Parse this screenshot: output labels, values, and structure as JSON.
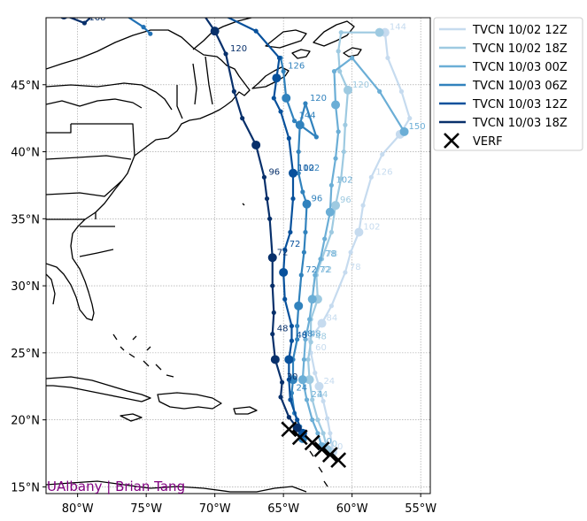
{
  "credit": "UAlbany | Brian Tang",
  "credit_color": "#800080",
  "chart_data": {
    "type": "line",
    "title": "",
    "xlabel": "",
    "ylabel": "",
    "map": "track map of the western North Atlantic with coastlines and state borders",
    "projection": "cylindrical (lon/lat)",
    "xlim": [
      -82.3,
      -54.3
    ],
    "ylim": [
      14.5,
      50
    ],
    "xticks": [
      -80,
      -75,
      -70,
      -65,
      -60,
      -55
    ],
    "xtick_labels": [
      "80°W",
      "75°W",
      "70°W",
      "65°W",
      "60°W",
      "55°W"
    ],
    "yticks": [
      15,
      20,
      25,
      30,
      35,
      40,
      45
    ],
    "ytick_labels": [
      "15°N",
      "20°N",
      "25°N",
      "30°N",
      "35°N",
      "40°N",
      "45°N"
    ],
    "grid": true,
    "legend_position": "outside-upper-right",
    "series": [
      {
        "name": "TVCN 10/02 12Z",
        "color": "#c6dbef",
        "points": [
          [
            -61.4,
            17.6
          ],
          [
            -61.6,
            19.0
          ],
          [
            -61.8,
            20.1
          ],
          [
            -62.1,
            21.4
          ],
          [
            -62.4,
            22.5
          ],
          [
            -62.7,
            23.5
          ],
          [
            -63.0,
            25.0
          ],
          [
            -63.1,
            26.0
          ],
          [
            -62.2,
            27.2
          ],
          [
            -61.5,
            28.5
          ],
          [
            -60.5,
            31.0
          ],
          [
            -60.1,
            32.5
          ],
          [
            -59.5,
            34.0
          ],
          [
            -59.2,
            36.0
          ],
          [
            -58.6,
            38.1
          ],
          [
            -57.8,
            39.8
          ],
          [
            -56.5,
            41.3
          ],
          [
            -55.8,
            42.5
          ],
          [
            -56.4,
            44.5
          ],
          [
            -57.4,
            47.0
          ],
          [
            -57.6,
            48.9
          ]
        ],
        "labels": [
          {
            "t": "0",
            "pt": 0
          },
          {
            "t": "24",
            "pt": 4
          },
          {
            "t": "60",
            "pt": 6
          },
          {
            "t": "84",
            "pt": 8
          },
          {
            "t": "78",
            "pt": 10
          },
          {
            "t": "102",
            "pt": 12
          },
          {
            "t": "126",
            "pt": 14
          },
          {
            "t": "144",
            "pt": 20
          }
        ]
      },
      {
        "name": "TVCN 10/02 18Z",
        "color": "#9ecae1",
        "points": [
          [
            -61.8,
            17.8
          ],
          [
            -62.1,
            19.0
          ],
          [
            -62.5,
            20.0
          ],
          [
            -62.9,
            21.5
          ],
          [
            -63.1,
            23.0
          ],
          [
            -63.2,
            24.5
          ],
          [
            -63.0,
            25.8
          ],
          [
            -63.0,
            27.5
          ],
          [
            -62.5,
            29.0
          ],
          [
            -62.6,
            30.8
          ],
          [
            -62.2,
            32.0
          ],
          [
            -61.5,
            34.0
          ],
          [
            -61.2,
            36.0
          ],
          [
            -60.8,
            38.0
          ],
          [
            -60.6,
            40.0
          ],
          [
            -60.5,
            42.0
          ],
          [
            -60.3,
            44.6
          ],
          [
            -60.9,
            46.0
          ],
          [
            -61.0,
            47.5
          ],
          [
            -60.8,
            48.9
          ],
          [
            -58.0,
            48.9
          ]
        ],
        "labels": [
          {
            "t": "0",
            "pt": 0
          },
          {
            "t": "24",
            "pt": 3
          },
          {
            "t": "48",
            "pt": 6
          },
          {
            "t": "72",
            "pt": 9
          },
          {
            "t": "78",
            "pt": 10
          },
          {
            "t": "96",
            "pt": 12
          },
          {
            "t": "120",
            "pt": 16
          }
        ]
      },
      {
        "name": "TVCN 10/03 00Z",
        "color": "#6baed6",
        "points": [
          [
            -62.2,
            18.0
          ],
          [
            -62.5,
            19.0
          ],
          [
            -62.9,
            20.0
          ],
          [
            -63.3,
            21.5
          ],
          [
            -63.6,
            23.0
          ],
          [
            -63.5,
            24.5
          ],
          [
            -63.4,
            26.0
          ],
          [
            -63.1,
            27.5
          ],
          [
            -62.9,
            29.0
          ],
          [
            -62.7,
            30.8
          ],
          [
            -62.3,
            32.0
          ],
          [
            -62.0,
            33.5
          ],
          [
            -61.6,
            35.5
          ],
          [
            -61.5,
            37.5
          ],
          [
            -61.2,
            39.5
          ],
          [
            -61.0,
            41.5
          ],
          [
            -61.2,
            43.5
          ],
          [
            -61.3,
            46.0
          ],
          [
            -60.0,
            47.0
          ],
          [
            -58.0,
            44.5
          ],
          [
            -56.2,
            41.5
          ]
        ],
        "labels": [
          {
            "t": "0",
            "pt": 0
          },
          {
            "t": "24",
            "pt": 3
          },
          {
            "t": "48",
            "pt": 6
          },
          {
            "t": "72",
            "pt": 9
          },
          {
            "t": "78",
            "pt": 10
          },
          {
            "t": "102",
            "pt": 13
          },
          {
            "t": "150",
            "pt": 20
          }
        ]
      },
      {
        "name": "TVCN 10/03 06Z",
        "color": "#3182bd",
        "points": [
          [
            -63.6,
            18.6
          ],
          [
            -63.8,
            19.5
          ],
          [
            -64.2,
            20.5
          ],
          [
            -64.4,
            22.0
          ],
          [
            -64.3,
            23.0
          ],
          [
            -64.3,
            24.5
          ],
          [
            -64.0,
            26.0
          ],
          [
            -64.0,
            27.0
          ],
          [
            -63.9,
            28.5
          ],
          [
            -63.7,
            30.8
          ],
          [
            -63.5,
            32.5
          ],
          [
            -63.4,
            34.0
          ],
          [
            -63.3,
            36.1
          ],
          [
            -63.6,
            37.0
          ],
          [
            -63.9,
            38.4
          ],
          [
            -63.9,
            40.0
          ],
          [
            -63.8,
            42.0
          ],
          [
            -63.4,
            43.6
          ],
          [
            -62.6,
            41.1
          ],
          [
            -64.2,
            42.3
          ],
          [
            -64.8,
            44.0
          ],
          [
            -65.0,
            46.0
          ],
          [
            -65.2,
            47.0
          ]
        ],
        "labels": [
          {
            "t": "24",
            "pt": 3
          },
          {
            "t": "48",
            "pt": 6
          },
          {
            "t": "72",
            "pt": 9
          },
          {
            "t": "96",
            "pt": 12
          },
          {
            "t": "102",
            "pt": 14
          },
          {
            "t": "120",
            "pt": 17
          },
          {
            "t": "144",
            "pt": 19
          },
          {
            "t": "126",
            "pt": 21
          }
        ]
      },
      {
        "name": "TVCN 10/03 12Z",
        "color": "#08519c",
        "points": [
          [
            -63.6,
            19.0
          ],
          [
            -64.0,
            20.0
          ],
          [
            -64.5,
            21.5
          ],
          [
            -64.6,
            23.0
          ],
          [
            -64.6,
            24.5
          ],
          [
            -64.4,
            25.9
          ],
          [
            -64.4,
            27.0
          ],
          [
            -64.9,
            29.0
          ],
          [
            -65.0,
            31.0
          ],
          [
            -64.9,
            32.7
          ],
          [
            -64.5,
            34.0
          ],
          [
            -64.3,
            36.5
          ],
          [
            -64.3,
            38.4
          ],
          [
            -64.6,
            41.0
          ],
          [
            -65.2,
            43.0
          ],
          [
            -65.7,
            44.0
          ],
          [
            -65.5,
            45.5
          ],
          [
            -65.3,
            47.0
          ],
          [
            -67.0,
            49.0
          ],
          [
            -70.0,
            50.5
          ]
        ],
        "labels": [
          {
            "t": "48",
            "pt": 5
          },
          {
            "t": "72",
            "pt": 9
          },
          {
            "t": "102",
            "pt": 12
          }
        ]
      },
      {
        "name": "TVCN 10/03 18Z",
        "color": "#08306b",
        "points": [
          [
            -64.0,
            19.4
          ],
          [
            -64.6,
            20.2
          ],
          [
            -65.2,
            21.7
          ],
          [
            -65.1,
            22.8
          ],
          [
            -65.6,
            24.5
          ],
          [
            -65.8,
            26.4
          ],
          [
            -65.7,
            28.0
          ],
          [
            -65.8,
            30.0
          ],
          [
            -65.8,
            32.1
          ],
          [
            -66.0,
            35.0
          ],
          [
            -66.2,
            36.5
          ],
          [
            -66.4,
            38.1
          ],
          [
            -67.0,
            40.5
          ],
          [
            -68.0,
            42.5
          ],
          [
            -68.6,
            44.5
          ],
          [
            -69.2,
            47.3
          ],
          [
            -70.0,
            49.0
          ],
          [
            -71.0,
            50.5
          ]
        ],
        "labels": [
          {
            "t": "30",
            "pt": 3
          },
          {
            "t": "48",
            "pt": 5
          },
          {
            "t": "72",
            "pt": 8
          },
          {
            "t": "96",
            "pt": 11
          },
          {
            "t": "120",
            "pt": 15
          }
        ]
      },
      {
        "name": "",
        "color": "#08306b",
        "points": [
          [
            -81.0,
            50.2
          ],
          [
            -79.5,
            49.6
          ],
          [
            -78.0,
            51.0
          ]
        ],
        "labels": [
          {
            "t": "168",
            "pt": 1
          }
        ]
      },
      {
        "name": "",
        "color": "#2171b5",
        "points": [
          [
            -77.0,
            50.5
          ],
          [
            -75.2,
            49.3
          ],
          [
            -74.7,
            48.8
          ]
        ],
        "labels": []
      }
    ],
    "verf": {
      "name": "VERF",
      "color": "#000000",
      "points": [
        [
          -64.6,
          19.3
        ],
        [
          -63.8,
          18.7
        ],
        [
          -62.9,
          18.3
        ],
        [
          -62.2,
          17.8
        ],
        [
          -61.6,
          17.4
        ],
        [
          -61.0,
          17.0
        ]
      ]
    }
  }
}
